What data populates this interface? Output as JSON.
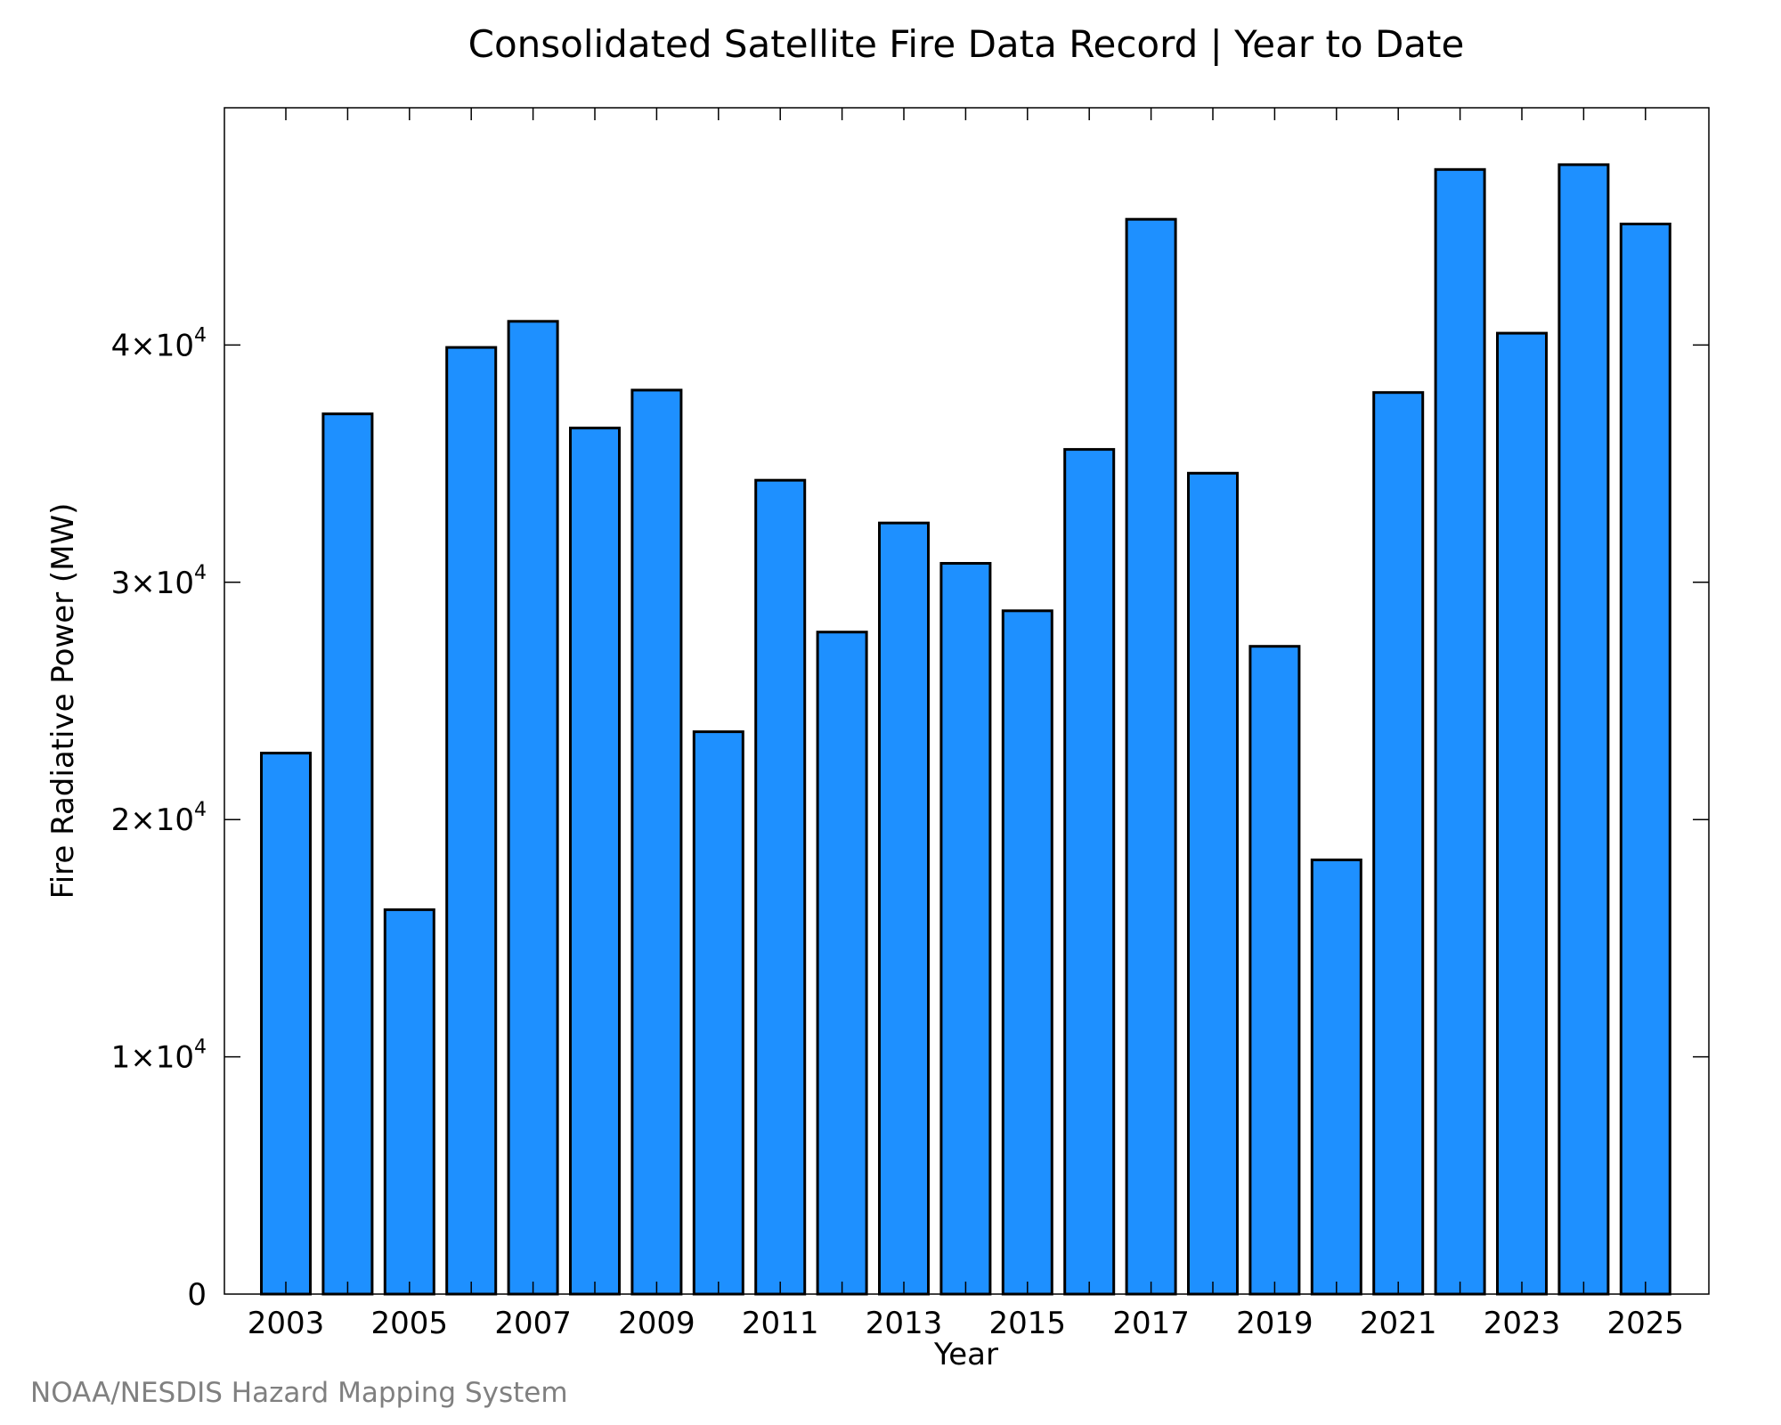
{
  "colors": {
    "bar_fill": "#1e90ff",
    "bar_stroke": "#000000",
    "credit": "#808080"
  },
  "credit": "NOAA/NESDIS Hazard Mapping System",
  "chart_data": {
    "type": "bar",
    "title": "Consolidated Satellite Fire Data Record | Year to Date",
    "xlabel": "Year",
    "ylabel": "Fire Radiative Power (MW)",
    "grid": false,
    "ylim": [
      0,
      50000
    ],
    "categories": [
      "2003",
      "2004",
      "2005",
      "2006",
      "2007",
      "2008",
      "2009",
      "2010",
      "2011",
      "2012",
      "2013",
      "2014",
      "2015",
      "2016",
      "2017",
      "2018",
      "2019",
      "2020",
      "2021",
      "2022",
      "2023",
      "2024",
      "2025"
    ],
    "x_tick_labels": [
      "2003",
      "2005",
      "2007",
      "2009",
      "2011",
      "2013",
      "2015",
      "2017",
      "2019",
      "2021",
      "2023",
      "2025"
    ],
    "y_ticks": [
      {
        "value": 0,
        "mantissa": "0",
        "exponent": ""
      },
      {
        "value": 10000,
        "mantissa": "1×10",
        "exponent": "4"
      },
      {
        "value": 20000,
        "mantissa": "2×10",
        "exponent": "4"
      },
      {
        "value": 30000,
        "mantissa": "3×10",
        "exponent": "4"
      },
      {
        "value": 40000,
        "mantissa": "4×10",
        "exponent": "4"
      }
    ],
    "values": [
      22800,
      37100,
      16200,
      39900,
      41000,
      36500,
      38100,
      23700,
      34300,
      27900,
      32500,
      30800,
      28800,
      35600,
      45300,
      34600,
      27300,
      18300,
      38000,
      47400,
      40500,
      47600,
      45100
    ]
  }
}
